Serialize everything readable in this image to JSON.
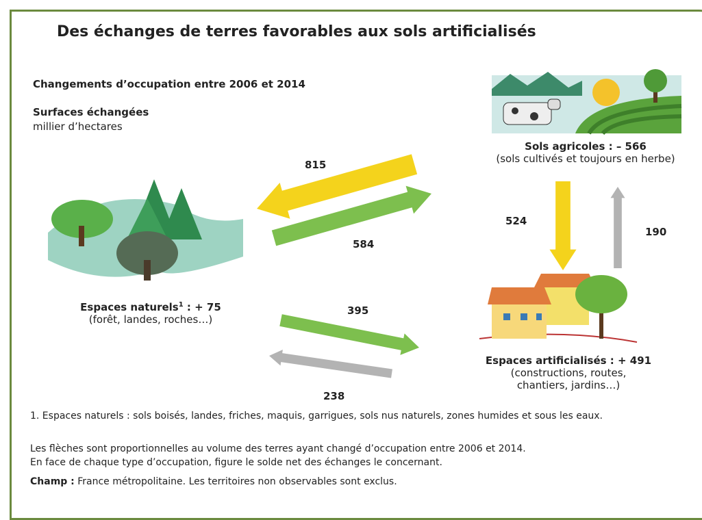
{
  "title": "Des échanges de terres favorables aux sols artificialisés",
  "subtitle": "Changements d’occupation entre 2006 et 2014",
  "measure": {
    "label": "Surfaces échangées",
    "unit": "millier d’hectares"
  },
  "nodes": [
    {
      "label": "Sols agricoles : – 566",
      "detail": [
        "(sols cultivés et toujours en herbe)"
      ]
    },
    {
      "label": "Espaces naturels",
      "footnote_mark": "1",
      "balance": ": + 75",
      "detail": [
        "(forêt, landes, roches…)"
      ]
    },
    {
      "label": "Espaces artificialisés : + 491",
      "detail": [
        "(constructions, routes,",
        "chantiers, jardins…)"
      ]
    }
  ],
  "flows": [
    {
      "value": 815,
      "color": "#f4d31c"
    },
    {
      "value": 584,
      "color": "#7dbf4e"
    },
    {
      "value": 524,
      "color": "#f4d31c"
    },
    {
      "value": 190,
      "color": "#b3b3b3"
    },
    {
      "value": 395,
      "color": "#7dbf4e"
    },
    {
      "value": 238,
      "color": "#b3b3b3"
    }
  ],
  "footnote": "1. Espaces naturels : sols boisés, landes, friches, maquis, garrigues, sols nus naturels, zones humides et sous les eaux.",
  "notes": [
    "Les flèches sont proportionnelles au volume des terres ayant changé d’occupation entre 2006 et 2014.",
    "En face de chaque type d’occupation, figure le solde net des échanges le concernant."
  ],
  "scope": {
    "label": "Champ :",
    "text": "France métropolitaine. Les territoires non observables sont exclus."
  }
}
